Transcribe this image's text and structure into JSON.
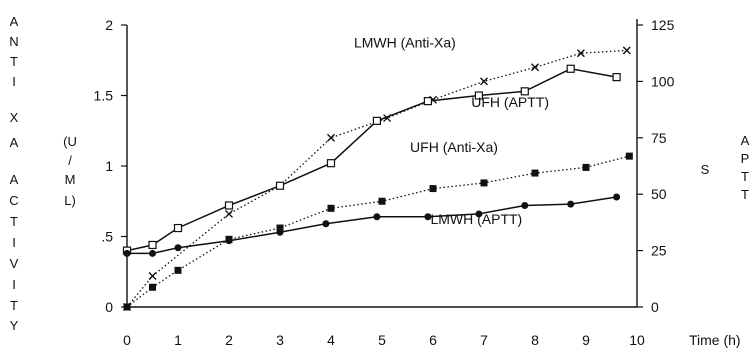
{
  "chart_data": {
    "type": "line",
    "x_axis": {
      "label": "Time (h)",
      "range": [
        0,
        10
      ],
      "ticks": [
        "0",
        "1",
        "2",
        "3",
        "4",
        "5",
        "6",
        "7",
        "8",
        "9",
        "10"
      ]
    },
    "y_left": {
      "label_letters": [
        "A",
        "N",
        "T",
        "I",
        "X",
        "A",
        "A",
        "C",
        "T",
        "I",
        "V",
        "I",
        "T",
        "Y"
      ],
      "unit_letters": [
        "(U",
        "/",
        "M",
        "L)"
      ],
      "range": [
        0,
        2
      ],
      "ticks": [
        {
          "v": 0,
          "t": "0"
        },
        {
          "v": 0.5,
          "t": ".5"
        },
        {
          "v": 1,
          "t": "1"
        },
        {
          "v": 1.5,
          "t": "1.5"
        },
        {
          "v": 2,
          "t": "2"
        }
      ]
    },
    "y_right": {
      "label_letters": [
        "A",
        "P",
        "T",
        "T"
      ],
      "unit": "S",
      "range": [
        0,
        125
      ],
      "ticks": [
        {
          "v": 0,
          "t": "0"
        },
        {
          "v": 25,
          "t": "25"
        },
        {
          "v": 50,
          "t": "50"
        },
        {
          "v": 75,
          "t": "75"
        },
        {
          "v": 100,
          "t": "100"
        },
        {
          "v": 125,
          "t": "125"
        }
      ]
    },
    "series": [
      {
        "name": "LMWH (Anti-Xa)",
        "axis": "left",
        "marker": "x",
        "line": "dotted",
        "label_at": [
          4.45,
          1.84
        ],
        "x": [
          0,
          0.5,
          2,
          3,
          4,
          5.1,
          6,
          7,
          8,
          8.9,
          9.8
        ],
        "y": [
          0,
          0.22,
          0.66,
          0.86,
          1.2,
          1.34,
          1.47,
          1.6,
          1.7,
          1.8,
          1.82
        ]
      },
      {
        "name": "UFH (APTT)",
        "axis": "right",
        "marker": "open-square",
        "line": "solid",
        "label_at": [
          6.75,
          88.75
        ],
        "x": [
          0,
          0.5,
          1,
          2,
          3,
          4,
          4.9,
          5.9,
          6.9,
          7.8,
          8.7,
          9.6
        ],
        "y": [
          25,
          27.5,
          35,
          45,
          53.75,
          63.75,
          82.5,
          91.25,
          93.75,
          95.6,
          105.6,
          101.9
        ]
      },
      {
        "name": "UFH (Anti-Xa)",
        "axis": "left",
        "marker": "filled-square",
        "line": "dotted",
        "label_at": [
          5.55,
          1.1
        ],
        "x": [
          0,
          0.5,
          1,
          2,
          3,
          4,
          5,
          6,
          7,
          8,
          9,
          9.85
        ],
        "y": [
          0,
          0.14,
          0.26,
          0.48,
          0.56,
          0.7,
          0.75,
          0.84,
          0.88,
          0.95,
          0.99,
          1.07
        ]
      },
      {
        "name": "LMWH (APTT)",
        "axis": "right",
        "marker": "filled-circle",
        "line": "solid",
        "label_at": [
          5.95,
          36.9
        ],
        "x": [
          0,
          0.5,
          1,
          2,
          3,
          3.9,
          4.9,
          5.9,
          6.9,
          7.8,
          8.7,
          9.6
        ],
        "y": [
          23.75,
          23.75,
          26.25,
          29.4,
          33.1,
          36.9,
          40,
          40,
          41.25,
          45,
          45.6,
          48.75
        ]
      }
    ]
  }
}
